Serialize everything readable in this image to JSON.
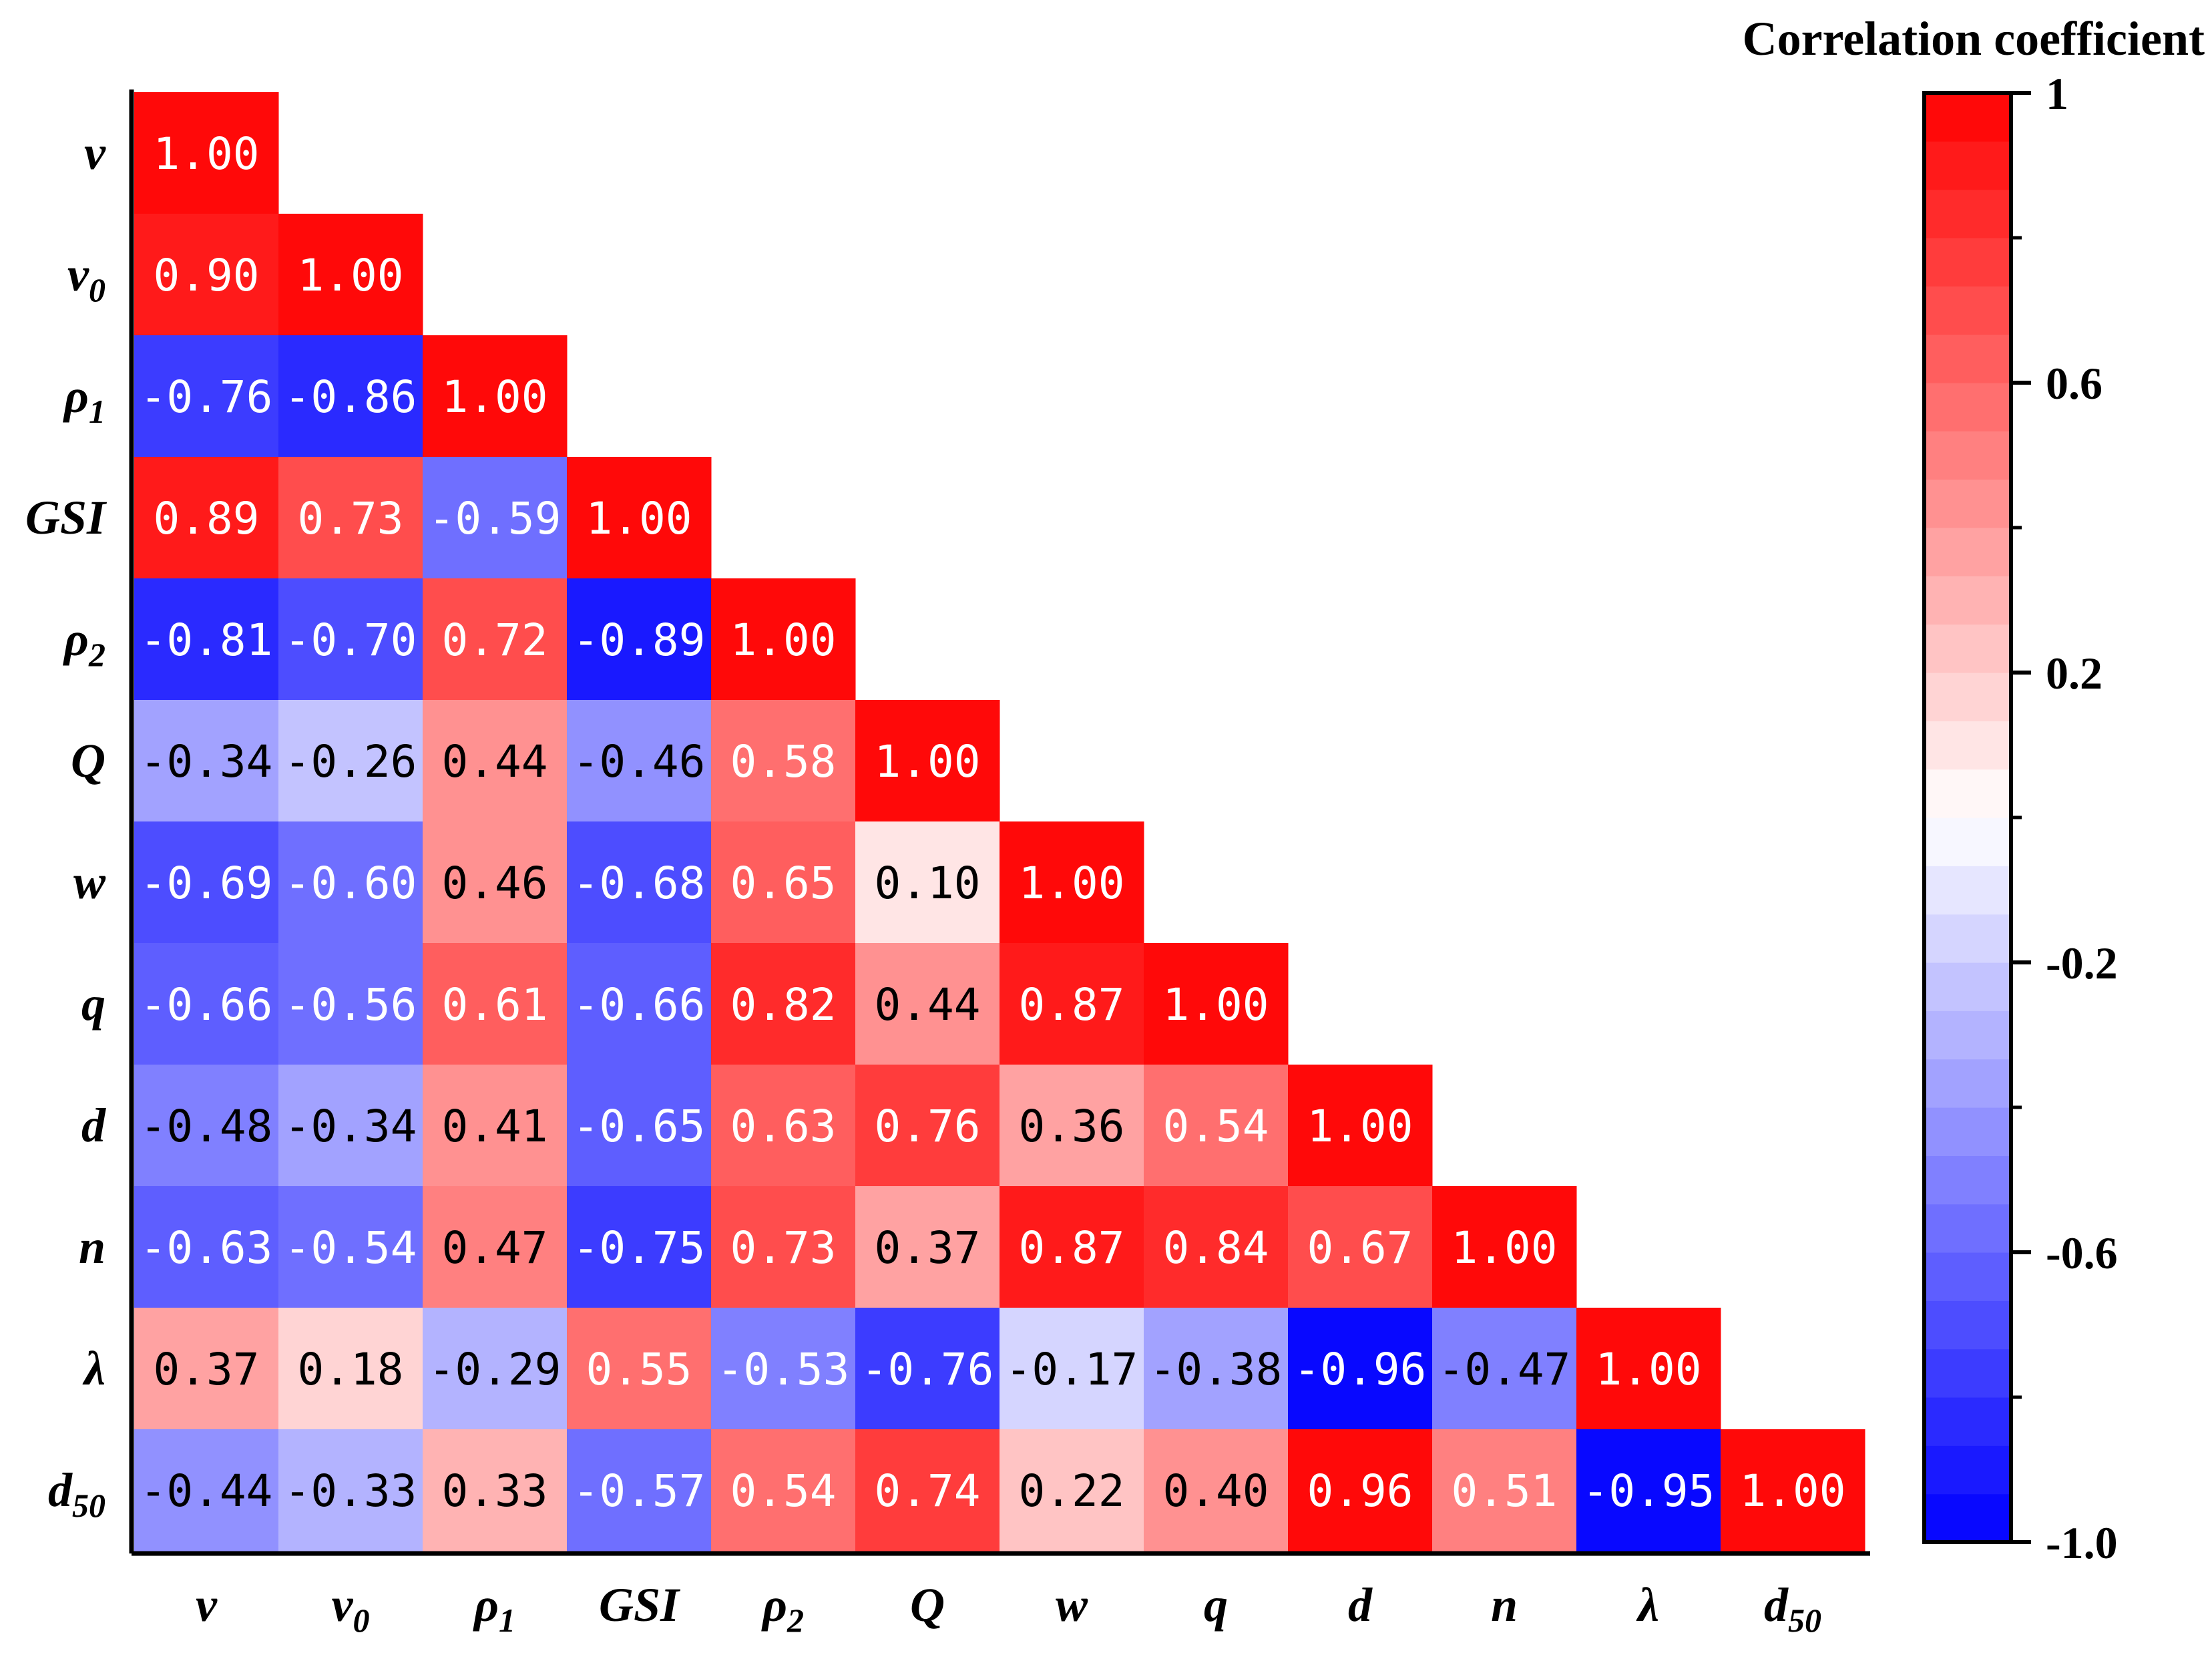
{
  "chart_data": {
    "type": "heatmap",
    "variables": [
      {
        "base": "v",
        "sub": ""
      },
      {
        "base": "v",
        "sub": "0"
      },
      {
        "base": "ρ",
        "sub": "1"
      },
      {
        "base": "GSI",
        "sub": ""
      },
      {
        "base": "ρ",
        "sub": "2"
      },
      {
        "base": "Q",
        "sub": ""
      },
      {
        "base": "w",
        "sub": ""
      },
      {
        "base": "q",
        "sub": ""
      },
      {
        "base": "d",
        "sub": ""
      },
      {
        "base": "n",
        "sub": ""
      },
      {
        "base": "λ",
        "sub": ""
      },
      {
        "base": "d",
        "sub": "50"
      }
    ],
    "matrix": [
      [
        1.0
      ],
      [
        0.9,
        1.0
      ],
      [
        -0.76,
        -0.86,
        1.0
      ],
      [
        0.89,
        0.73,
        -0.59,
        1.0
      ],
      [
        -0.81,
        -0.7,
        0.72,
        -0.89,
        1.0
      ],
      [
        -0.34,
        -0.26,
        0.44,
        -0.46,
        0.58,
        1.0
      ],
      [
        -0.69,
        -0.6,
        0.46,
        -0.68,
        0.65,
        0.1,
        1.0
      ],
      [
        -0.66,
        -0.56,
        0.61,
        -0.66,
        0.82,
        0.44,
        0.87,
        1.0
      ],
      [
        -0.48,
        -0.34,
        0.41,
        -0.65,
        0.63,
        0.76,
        0.36,
        0.54,
        1.0
      ],
      [
        -0.63,
        -0.54,
        0.47,
        -0.75,
        0.73,
        0.37,
        0.87,
        0.84,
        0.67,
        1.0
      ],
      [
        0.37,
        0.18,
        -0.29,
        0.55,
        -0.53,
        -0.76,
        -0.17,
        -0.38,
        -0.96,
        -0.47,
        1.0
      ],
      [
        -0.44,
        -0.33,
        0.33,
        -0.57,
        0.54,
        0.74,
        0.22,
        0.4,
        0.96,
        0.51,
        -0.95,
        1.0
      ]
    ],
    "cell_labels": [
      [
        "1.00"
      ],
      [
        "0.90",
        "1.00"
      ],
      [
        "-0.76",
        "-0.86",
        "1.00"
      ],
      [
        "0.89",
        "0.73",
        "-0.59",
        "1.00"
      ],
      [
        "-0.81",
        "-0.70",
        "0.72",
        "-0.89",
        "1.00"
      ],
      [
        "-0.34",
        "-0.26",
        "0.44",
        "-0.46",
        "0.58",
        "1.00"
      ],
      [
        "-0.69",
        "-0.60",
        "0.46",
        "-0.68",
        "0.65",
        "0.10",
        "1.00"
      ],
      [
        "-0.66",
        "-0.56",
        "0.61",
        "-0.66",
        "0.82",
        "0.44",
        "0.87",
        "1.00"
      ],
      [
        "-0.48",
        "-0.34",
        "0.41",
        "-0.65",
        "0.63",
        "0.76",
        "0.36",
        "0.54",
        "1.00"
      ],
      [
        "-0.63",
        "-0.54",
        "0.47",
        "-0.75",
        "0.73",
        "0.37",
        "0.87",
        "0.84",
        "0.67",
        "1.00"
      ],
      [
        "0.37",
        "0.18",
        "-0.29",
        "0.55",
        "-0.53",
        "-0.76",
        "-0.17",
        "-0.38",
        "-0.96",
        "-0.47",
        "1.00"
      ],
      [
        "-0.44",
        "-0.33",
        "0.33",
        "-0.57",
        "0.54",
        "0.74",
        "0.22",
        "0.40",
        "0.96",
        "0.51",
        "-0.95",
        "1.00"
      ]
    ],
    "colorbar": {
      "title": "Correlation coefficient",
      "range": [
        -1.0,
        1.0
      ],
      "ticks": [
        1,
        0.6,
        0.2,
        -0.2,
        -0.6,
        -1.0
      ],
      "tick_labels": [
        "1",
        "0.6",
        "0.2",
        "-0.2",
        "-0.6",
        "-1.0"
      ],
      "steps": 30,
      "low_color": "#0000ff",
      "mid_color": "#ffffff",
      "high_color": "#ff0000"
    },
    "lower_triangle_only": true,
    "grid": false
  }
}
